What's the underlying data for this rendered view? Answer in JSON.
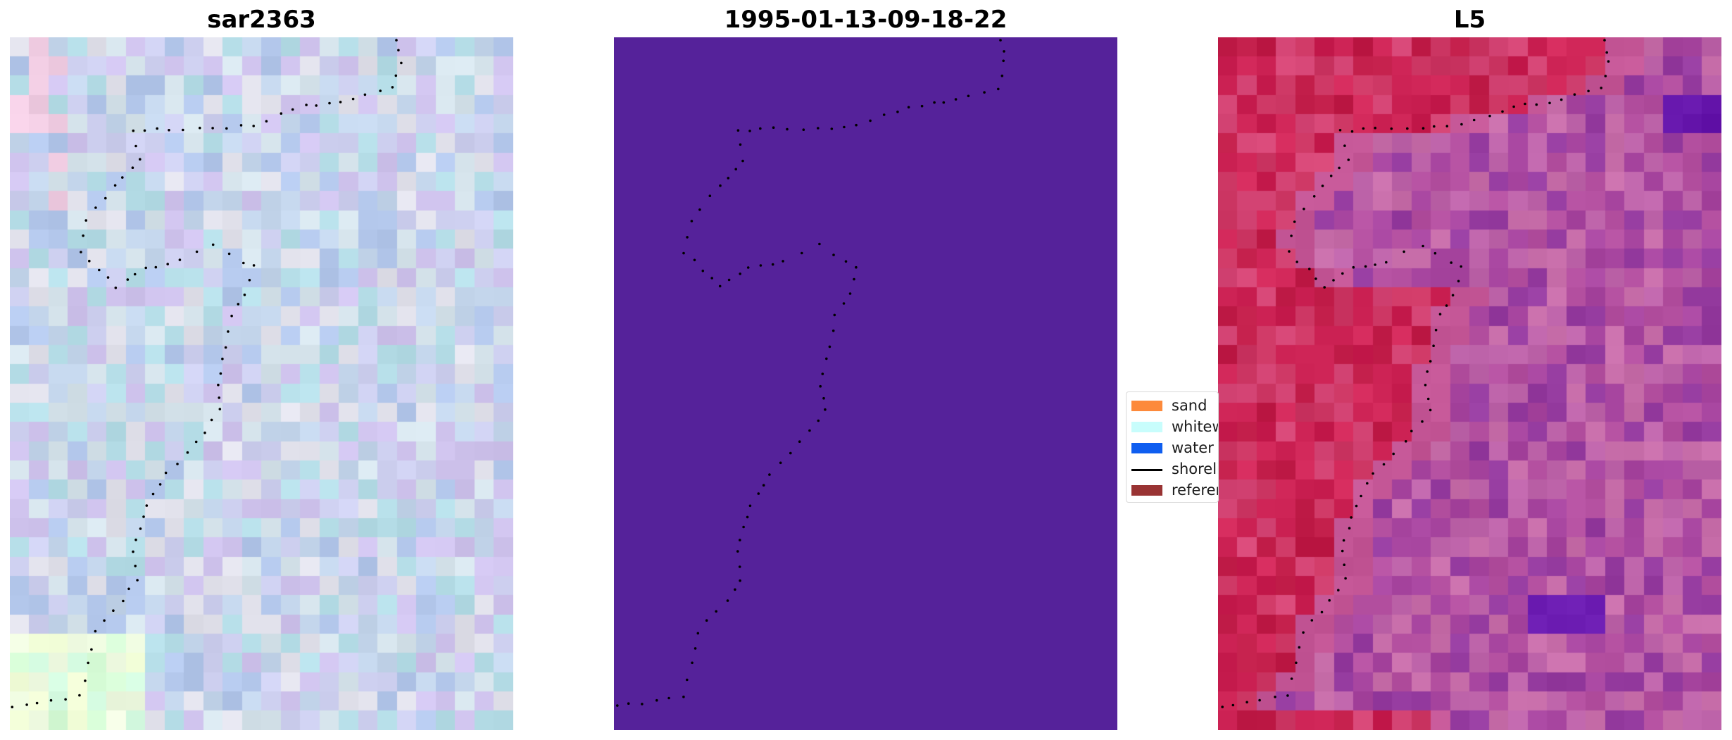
{
  "panels": [
    {
      "title": "sar2363",
      "style": "pastel"
    },
    {
      "title": "1995-01-13-09-18-22",
      "style": "solid",
      "fill_color": "#55229a"
    },
    {
      "title": "L5",
      "style": "magenta"
    }
  ],
  "legend": {
    "items": [
      {
        "label": "sand",
        "color": "#fd8a3b",
        "kind": "patch"
      },
      {
        "label": "whitewater",
        "color": "#c8fdfc",
        "kind": "patch"
      },
      {
        "label": "water",
        "color": "#0f5ef0",
        "kind": "patch"
      },
      {
        "label": "shoreline",
        "color": "#000000",
        "kind": "line"
      },
      {
        "label": "reference",
        "color": "#993333",
        "kind": "patch"
      }
    ]
  },
  "colors": {
    "shoreline_dots": "#000000",
    "figure_background": "#ffffff"
  }
}
